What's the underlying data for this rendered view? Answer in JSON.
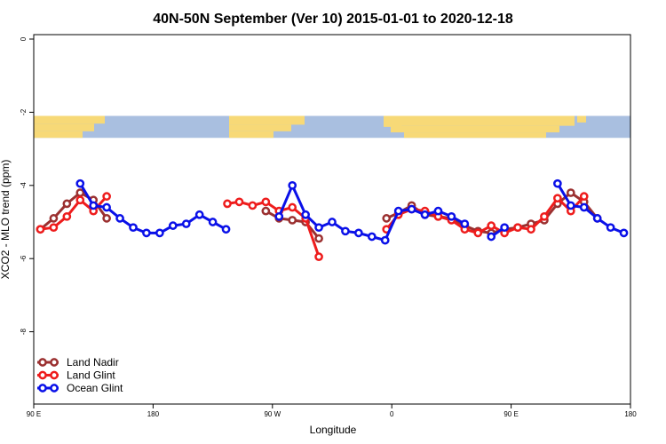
{
  "chart_data": {
    "type": "line",
    "title": "40N-50N September (Ver 10)   2015-01-01 to 2020-12-18",
    "xlabel": "Longitude",
    "ylabel": "XCO2 - MLO trend (ppm)",
    "xlim": [
      90,
      540
    ],
    "ylim": [
      -10,
      0.2
    ],
    "x_ticks": [
      {
        "value": 90,
        "label": "90 E"
      },
      {
        "value": 180,
        "label": "180"
      },
      {
        "value": 270,
        "label": "90 W"
      },
      {
        "value": 360,
        "label": "0"
      },
      {
        "value": 450,
        "label": "90 E"
      },
      {
        "value": 540,
        "label": "180"
      }
    ],
    "y_ticks": [
      {
        "value": 0,
        "label": "0"
      },
      {
        "value": -2,
        "label": "-2"
      },
      {
        "value": -4,
        "label": "-4"
      },
      {
        "value": -6,
        "label": "-6"
      },
      {
        "value": -8,
        "label": "-8"
      }
    ],
    "legend_position": "bottom-left",
    "map_band": {
      "y_top": -2.1,
      "y_bottom": -2.7,
      "land_color": "#f7d977",
      "ocean_color": "#a9bfe0"
    },
    "series": [
      {
        "name": "Land Nadir",
        "color": "#9b3030",
        "segments": [
          [
            [
              95,
              -5.2
            ],
            [
              105,
              -4.9
            ],
            [
              115,
              -4.5
            ],
            [
              125,
              -4.2
            ],
            [
              135,
              -4.4
            ],
            [
              145,
              -4.9
            ]
          ],
          [
            [
              265,
              -4.7
            ],
            [
              275,
              -4.9
            ],
            [
              285,
              -4.95
            ],
            [
              295,
              -5.0
            ],
            [
              305,
              -5.45
            ]
          ],
          [
            [
              356,
              -4.9
            ],
            [
              365,
              -4.75
            ],
            [
              375,
              -4.55
            ],
            [
              385,
              -4.8
            ],
            [
              395,
              -4.85
            ],
            [
              405,
              -4.9
            ],
            [
              415,
              -5.1
            ],
            [
              425,
              -5.25
            ],
            [
              435,
              -5.3
            ],
            [
              445,
              -5.2
            ],
            [
              455,
              -5.15
            ],
            [
              465,
              -5.05
            ],
            [
              475,
              -4.95
            ],
            [
              485,
              -4.5
            ],
            [
              495,
              -4.2
            ],
            [
              505,
              -4.45
            ],
            [
              515,
              -4.9
            ]
          ]
        ]
      },
      {
        "name": "Land Glint",
        "color": "#ee1c1c",
        "segments": [
          [
            [
              95,
              -5.2
            ],
            [
              105,
              -5.15
            ],
            [
              115,
              -4.85
            ],
            [
              125,
              -4.4
            ],
            [
              135,
              -4.7
            ],
            [
              145,
              -4.3
            ]
          ],
          [
            [
              236,
              -4.5
            ],
            [
              245,
              -4.45
            ],
            [
              255,
              -4.55
            ],
            [
              265,
              -4.45
            ],
            [
              275,
              -4.7
            ],
            [
              285,
              -4.6
            ],
            [
              295,
              -4.9
            ],
            [
              305,
              -5.95
            ]
          ],
          [
            [
              356,
              -5.2
            ],
            [
              365,
              -4.8
            ],
            [
              375,
              -4.65
            ],
            [
              385,
              -4.7
            ],
            [
              395,
              -4.85
            ],
            [
              405,
              -4.95
            ],
            [
              415,
              -5.2
            ],
            [
              425,
              -5.3
            ],
            [
              435,
              -5.1
            ],
            [
              445,
              -5.3
            ],
            [
              455,
              -5.15
            ],
            [
              465,
              -5.2
            ],
            [
              475,
              -4.85
            ],
            [
              485,
              -4.35
            ],
            [
              495,
              -4.7
            ],
            [
              505,
              -4.3
            ]
          ]
        ]
      },
      {
        "name": "Ocean Glint",
        "color": "#0a10e8",
        "segments": [
          [
            [
              125,
              -3.95
            ],
            [
              135,
              -4.55
            ],
            [
              145,
              -4.6
            ],
            [
              155,
              -4.9
            ],
            [
              165,
              -5.15
            ],
            [
              175,
              -5.3
            ],
            [
              185,
              -5.3
            ],
            [
              195,
              -5.1
            ],
            [
              205,
              -5.05
            ],
            [
              215,
              -4.8
            ],
            [
              225,
              -5.0
            ],
            [
              235,
              -5.2
            ]
          ],
          [
            [
              275,
              -4.85
            ],
            [
              285,
              -4.0
            ],
            [
              295,
              -4.8
            ],
            [
              305,
              -5.15
            ],
            [
              315,
              -5.0
            ],
            [
              325,
              -5.25
            ],
            [
              335,
              -5.3
            ],
            [
              345,
              -5.4
            ],
            [
              355,
              -5.5
            ],
            [
              365,
              -4.7
            ],
            [
              375,
              -4.65
            ],
            [
              385,
              -4.8
            ],
            [
              395,
              -4.7
            ],
            [
              405,
              -4.85
            ],
            [
              415,
              -5.05
            ]
          ],
          [
            [
              435,
              -5.4
            ],
            [
              445,
              -5.15
            ]
          ],
          [
            [
              485,
              -3.95
            ],
            [
              495,
              -4.55
            ],
            [
              505,
              -4.6
            ],
            [
              515,
              -4.9
            ],
            [
              525,
              -5.15
            ],
            [
              535,
              -5.3
            ]
          ]
        ]
      }
    ]
  }
}
